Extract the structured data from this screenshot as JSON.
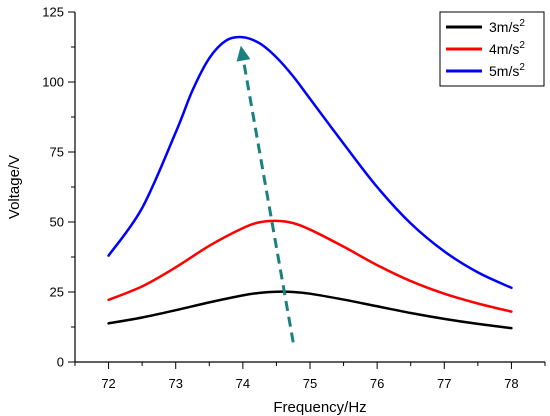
{
  "chart_data": {
    "type": "line",
    "xlabel": "Frequency/Hz",
    "ylabel": "Voltage/V",
    "xlim": [
      71.5,
      78.5
    ],
    "ylim": [
      0,
      125
    ],
    "xticks": [
      72,
      73,
      74,
      75,
      76,
      77,
      78
    ],
    "yticks": [
      0,
      25,
      50,
      75,
      100,
      125
    ],
    "legend_position": "top-right",
    "grid": false,
    "series": [
      {
        "name_base": "3m/s",
        "name_sup": "2",
        "color": "#000000",
        "x": [
          72,
          72.5,
          73,
          73.5,
          74,
          74.25,
          74.5,
          74.75,
          75,
          75.5,
          76,
          76.5,
          77,
          77.5,
          78
        ],
        "y": [
          13.8,
          15.9,
          18.5,
          21.3,
          23.8,
          24.7,
          25.1,
          25.0,
          24.4,
          22.3,
          19.9,
          17.5,
          15.4,
          13.6,
          12.1
        ]
      },
      {
        "name_base": "4m/s",
        "name_sup": "2",
        "color": "#ff0000",
        "x": [
          72,
          72.5,
          73,
          73.5,
          74,
          74.25,
          74.5,
          74.75,
          75,
          75.5,
          76,
          76.5,
          77,
          77.5,
          78
        ],
        "y": [
          22.2,
          27.0,
          33.8,
          41.5,
          47.8,
          49.9,
          50.4,
          49.6,
          47.3,
          41.2,
          34.6,
          28.9,
          24.4,
          20.9,
          18.0
        ]
      },
      {
        "name_base": "5m/s",
        "name_sup": "2",
        "color": "#0000ff",
        "x": [
          72,
          72.5,
          73,
          73.25,
          73.5,
          73.75,
          74,
          74.25,
          74.5,
          74.75,
          75,
          75.5,
          76,
          76.5,
          77,
          77.5,
          78
        ],
        "y": [
          38.0,
          55.0,
          82.0,
          97.0,
          108.5,
          114.8,
          116.0,
          113.8,
          108.8,
          102.0,
          94.0,
          78.0,
          62.5,
          49.5,
          39.5,
          32.0,
          26.5
        ]
      }
    ],
    "annotation": {
      "type": "dashed-arrow",
      "color": "#1a8080",
      "from": [
        74.75,
        7
      ],
      "to": [
        73.97,
        113
      ]
    }
  }
}
